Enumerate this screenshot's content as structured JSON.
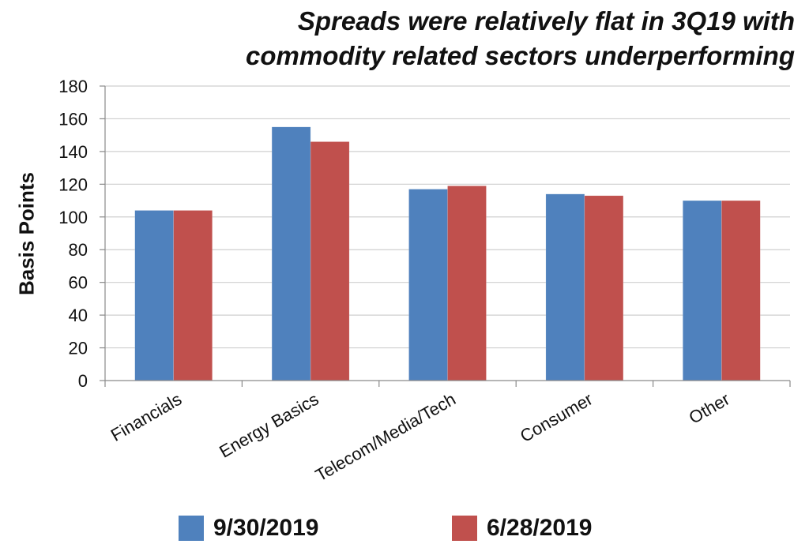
{
  "chart_data": {
    "type": "bar",
    "title": "Spreads were relatively flat in 3Q19 with commodity related sectors underperforming",
    "title_lines": [
      "Spreads were relatively flat in 3Q19 with",
      "commodity related sectors underperforming"
    ],
    "ylabel": "Basis Points",
    "xlabel": "",
    "ylim": [
      0,
      180
    ],
    "yticks": [
      0,
      20,
      40,
      60,
      80,
      100,
      120,
      140,
      160,
      180
    ],
    "grid": true,
    "legend_position": "bottom",
    "categories": [
      "Financials",
      "Energy Basics",
      "Telecom/Media/Tech",
      "Consumer",
      "Other"
    ],
    "series": [
      {
        "name": "9/30/2019",
        "color": "#4f81bd",
        "values": [
          104,
          155,
          117,
          114,
          110
        ]
      },
      {
        "name": "6/28/2019",
        "color": "#c0504d",
        "values": [
          104,
          146,
          119,
          113,
          110
        ]
      }
    ]
  }
}
